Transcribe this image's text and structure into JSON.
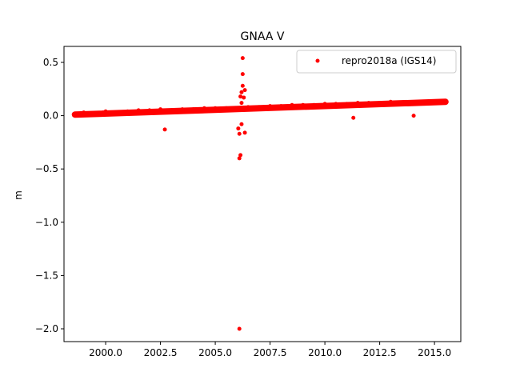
{
  "chart_data": {
    "type": "scatter",
    "title": "GNAA V",
    "xlabel": "",
    "ylabel": "m",
    "xlim": [
      1998.1,
      2016.2
    ],
    "ylim": [
      -2.12,
      0.65
    ],
    "x_ticks": [
      2000.0,
      2002.5,
      2005.0,
      2007.5,
      2010.0,
      2012.5,
      2015.0
    ],
    "x_tick_labels": [
      "2000.0",
      "2002.5",
      "2005.0",
      "2007.5",
      "2010.0",
      "2012.5",
      "2015.0"
    ],
    "y_ticks": [
      0.5,
      0.0,
      -0.5,
      -1.0,
      -1.5,
      -2.0
    ],
    "y_tick_labels": [
      "0.5",
      "0.0",
      "−0.5",
      "−1.0",
      "−1.5",
      "−2.0"
    ],
    "grid": false,
    "legend": "top-right",
    "series": [
      {
        "name": "repro2018a (IGS14)",
        "color": "#ff0000",
        "marker": "circle",
        "trend": {
          "x_start": 1998.6,
          "x_end": 2015.5,
          "y_start": 0.01,
          "y_end": 0.13
        },
        "points": [
          {
            "x": 1998.6,
            "y": 0.01
          },
          {
            "x": 1999.0,
            "y": 0.03
          },
          {
            "x": 1999.5,
            "y": 0.02
          },
          {
            "x": 2000.0,
            "y": 0.04
          },
          {
            "x": 2000.5,
            "y": 0.03
          },
          {
            "x": 2001.0,
            "y": 0.04
          },
          {
            "x": 2001.5,
            "y": 0.05
          },
          {
            "x": 2002.0,
            "y": 0.05
          },
          {
            "x": 2002.5,
            "y": 0.06
          },
          {
            "x": 2002.7,
            "y": -0.13
          },
          {
            "x": 2003.0,
            "y": 0.05
          },
          {
            "x": 2003.5,
            "y": 0.06
          },
          {
            "x": 2004.0,
            "y": 0.06
          },
          {
            "x": 2004.5,
            "y": 0.07
          },
          {
            "x": 2005.0,
            "y": 0.07
          },
          {
            "x": 2005.5,
            "y": 0.07
          },
          {
            "x": 2006.0,
            "y": 0.06
          },
          {
            "x": 2006.05,
            "y": -0.12
          },
          {
            "x": 2006.1,
            "y": -0.17
          },
          {
            "x": 2006.1,
            "y": -0.4
          },
          {
            "x": 2006.15,
            "y": -0.37
          },
          {
            "x": 2006.1,
            "y": -2.0
          },
          {
            "x": 2006.2,
            "y": -0.08
          },
          {
            "x": 2006.2,
            "y": 0.22
          },
          {
            "x": 2006.25,
            "y": 0.28
          },
          {
            "x": 2006.25,
            "y": 0.39
          },
          {
            "x": 2006.25,
            "y": 0.54
          },
          {
            "x": 2006.3,
            "y": 0.17
          },
          {
            "x": 2006.35,
            "y": -0.16
          },
          {
            "x": 2006.35,
            "y": 0.24
          },
          {
            "x": 2006.15,
            "y": 0.18
          },
          {
            "x": 2006.2,
            "y": 0.12
          },
          {
            "x": 2006.5,
            "y": 0.08
          },
          {
            "x": 2007.0,
            "y": 0.08
          },
          {
            "x": 2007.5,
            "y": 0.09
          },
          {
            "x": 2008.0,
            "y": 0.09
          },
          {
            "x": 2008.5,
            "y": 0.1
          },
          {
            "x": 2009.0,
            "y": 0.1
          },
          {
            "x": 2009.5,
            "y": 0.1
          },
          {
            "x": 2010.0,
            "y": 0.11
          },
          {
            "x": 2010.5,
            "y": 0.11
          },
          {
            "x": 2011.0,
            "y": 0.11
          },
          {
            "x": 2011.3,
            "y": -0.02
          },
          {
            "x": 2011.5,
            "y": 0.12
          },
          {
            "x": 2012.0,
            "y": 0.12
          },
          {
            "x": 2012.5,
            "y": 0.12
          },
          {
            "x": 2013.0,
            "y": 0.13
          },
          {
            "x": 2013.5,
            "y": 0.12
          },
          {
            "x": 2014.0,
            "y": 0.12
          },
          {
            "x": 2014.05,
            "y": 0.0
          },
          {
            "x": 2014.5,
            "y": 0.13
          },
          {
            "x": 2015.0,
            "y": 0.13
          },
          {
            "x": 2015.5,
            "y": 0.12
          }
        ]
      }
    ]
  }
}
